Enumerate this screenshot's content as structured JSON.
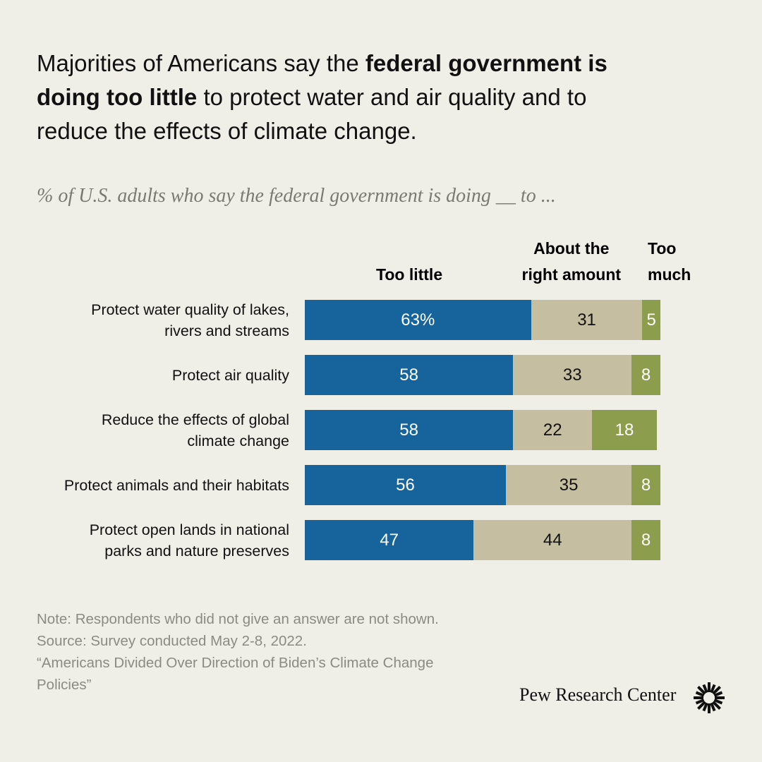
{
  "chart_data": {
    "type": "bar",
    "orientation": "horizontal",
    "stacked": true,
    "title": [
      {
        "text": "Majorities of Americans say the ",
        "bold": false
      },
      {
        "text": "federal government is doing too little",
        "bold": true
      },
      {
        "text": " to protect water and air quality and to reduce the effects of climate change.",
        "bold": false
      }
    ],
    "subtitle": "% of U.S. adults who say the federal government is doing __ to ...",
    "categories": [
      "Protect water quality of lakes,\nrivers and streams",
      "Protect air quality",
      "Reduce the effects of global\nclimate change",
      "Protect animals and their habitats",
      "Protect open lands in national\nparks and nature preserves"
    ],
    "xlim": [
      0,
      100
    ],
    "series": [
      {
        "name": "Too little",
        "color": "#17639b",
        "label_color": "#ffffff",
        "values": [
          63,
          58,
          58,
          56,
          47
        ],
        "value_labels": [
          "63%",
          "58",
          "58",
          "56",
          "47"
        ]
      },
      {
        "name": "About the\nright amount",
        "color": "#c6bea0",
        "label_color": "#111111",
        "values": [
          31,
          33,
          22,
          35,
          44
        ]
      },
      {
        "name": "Too\nmuch",
        "color": "#8c9d4e",
        "label_color": "#ffffff",
        "values": [
          5,
          8,
          18,
          8,
          8
        ]
      }
    ],
    "notes": [
      "Note: Respondents who did not give an answer are not shown.",
      "Source: Survey conducted May 2-8, 2022.",
      "“Americans Divided Over Direction of Biden’s Climate Change Policies”"
    ],
    "source_logo": "Pew Research Center"
  }
}
